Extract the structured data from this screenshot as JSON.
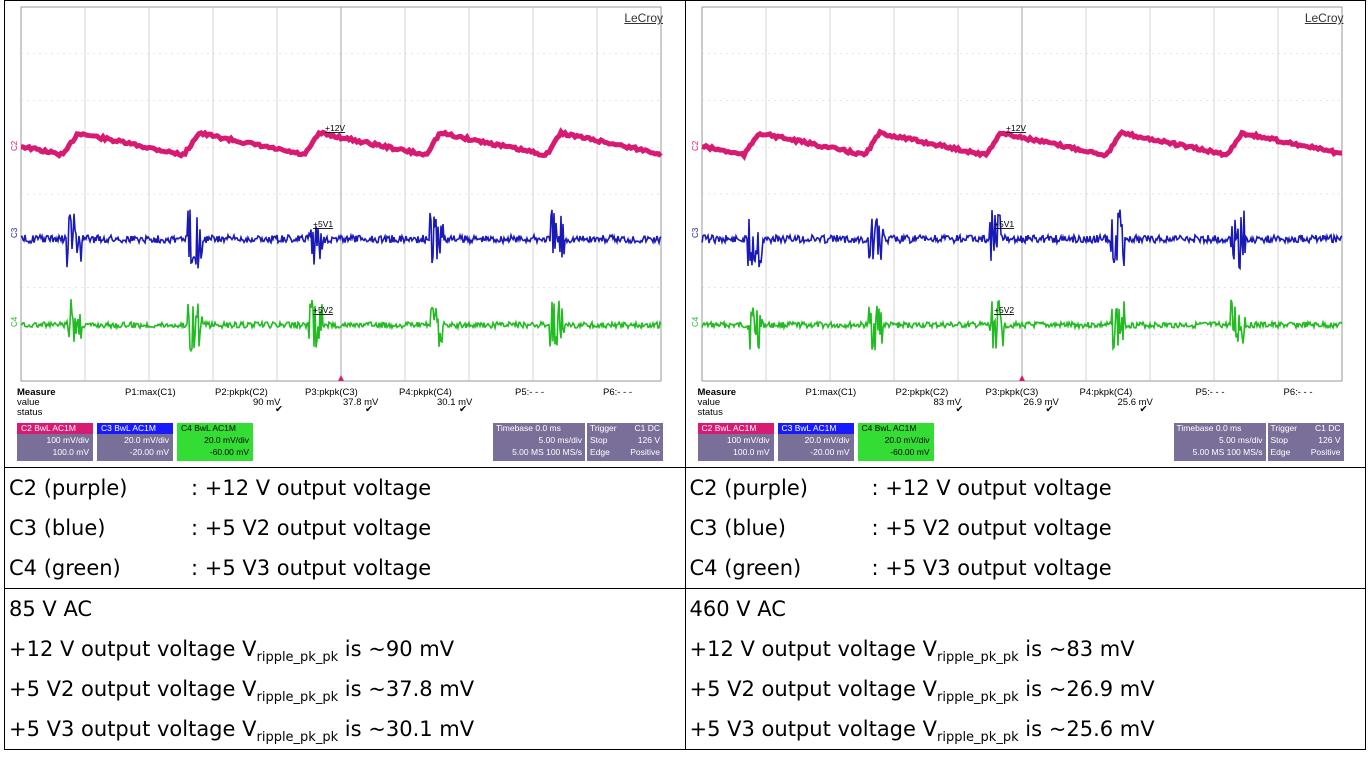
{
  "panels": [
    {
      "logo": "LeCroy",
      "trace_labels": [
        "+12V",
        "+5V1",
        "+5V2"
      ],
      "channel_markers": [
        "C2",
        "C3",
        "C4"
      ],
      "measure": {
        "row_titles": [
          "Measure",
          "value",
          "status"
        ],
        "params": [
          "P1:max(C1)",
          "P2:pkpk(C2)",
          "P3:pkpk(C3)",
          "P4:pkpk(C4)",
          "P5:- - -",
          "P6:- - -"
        ],
        "values": [
          "",
          "90 mV",
          "37.8 mV",
          "30.1 mV",
          "",
          ""
        ]
      },
      "channels": [
        {
          "name": "C2",
          "coupling": "BwL AC1M",
          "scale": "100 mV/div",
          "offset": "100.0 mV",
          "color": "#7a6f99",
          "tag": "#d81b72"
        },
        {
          "name": "C3",
          "coupling": "BwL AC1M",
          "scale": "20.0 mV/div",
          "offset": "-20.00 mV",
          "color": "#7a6f99",
          "tag": "#1a1aff"
        },
        {
          "name": "C4",
          "coupling": "BwL AC1M",
          "scale": "20.0 mV/div",
          "offset": "-60.00 mV",
          "color": "#33dd33",
          "tag": "#33dd33"
        }
      ],
      "timebase": {
        "label": "Timebase",
        "delay": "0.0 ms",
        "div": "5.00 ms/div",
        "samples": "5.00 MS",
        "rate": "100 MS/s"
      },
      "trigger": {
        "label": "Trigger",
        "src": "C1 DC",
        "mode": "Stop",
        "level": "126 V",
        "type": "Edge",
        "slope": "Positive"
      }
    },
    {
      "logo": "LeCroy",
      "trace_labels": [
        "+12V",
        "+5V1",
        "+5V2"
      ],
      "channel_markers": [
        "C2",
        "C3",
        "C4"
      ],
      "measure": {
        "row_titles": [
          "Measure",
          "value",
          "status"
        ],
        "params": [
          "P1:max(C1)",
          "P2:pkpk(C2)",
          "P3:pkpk(C3)",
          "P4:pkpk(C4)",
          "P5:- - -",
          "P6:- - -"
        ],
        "values": [
          "",
          "83 mV",
          "26.9 mV",
          "25.6 mV",
          "",
          ""
        ]
      },
      "channels": [
        {
          "name": "C2",
          "coupling": "BwL AC1M",
          "scale": "100 mV/div",
          "offset": "100.0 mV",
          "color": "#7a6f99",
          "tag": "#d81b72"
        },
        {
          "name": "C3",
          "coupling": "BwL AC1M",
          "scale": "20.0 mV/div",
          "offset": "-20.00 mV",
          "color": "#7a6f99",
          "tag": "#1a1aff"
        },
        {
          "name": "C4",
          "coupling": "BwL AC1M",
          "scale": "20.0 mV/div",
          "offset": "-60.00 mV",
          "color": "#33dd33",
          "tag": "#33dd33"
        }
      ],
      "timebase": {
        "label": "Timebase",
        "delay": "0.0 ms",
        "div": "5.00 ms/div",
        "samples": "5.00 MS",
        "rate": "100 MS/s"
      },
      "trigger": {
        "label": "Trigger",
        "src": "C1 DC",
        "mode": "Stop",
        "level": "126 V",
        "type": "Edge",
        "slope": "Positive"
      }
    }
  ],
  "legend": [
    {
      "channel": "C2 (purple)",
      "desc": ": +12 V output voltage"
    },
    {
      "channel": "C3 (blue)",
      "desc": ": +5 V2 output voltage"
    },
    {
      "channel": "C4 (green)",
      "desc": ": +5 V3 output voltage"
    }
  ],
  "conditions": [
    {
      "input": "85 V AC",
      "lines": [
        {
          "pre": "+12 V output voltage V",
          "sub": "ripple_pk_pk",
          "post": " is ~90 mV"
        },
        {
          "pre": "+5 V2 output voltage V",
          "sub": "ripple_pk_pk",
          "post": " is ~37.8 mV"
        },
        {
          "pre": "+5 V3 output voltage V",
          "sub": "ripple_pk_pk",
          "post": " is ~30.1 mV"
        }
      ]
    },
    {
      "input": "460 V AC",
      "lines": [
        {
          "pre": "+12 V output voltage V",
          "sub": "ripple_pk_pk",
          "post": " is ~83 mV"
        },
        {
          "pre": "+5 V2 output voltage V",
          "sub": "ripple_pk_pk",
          "post": " is ~26.9 mV"
        },
        {
          "pre": "+5 V3 output voltage V",
          "sub": "ripple_pk_pk",
          "post": " is ~25.6 mV"
        }
      ]
    }
  ],
  "colors": {
    "magenta": "#d81b72",
    "blue": "#1a1ab8",
    "green": "#22bb22",
    "grid": "#bbbbbb"
  }
}
